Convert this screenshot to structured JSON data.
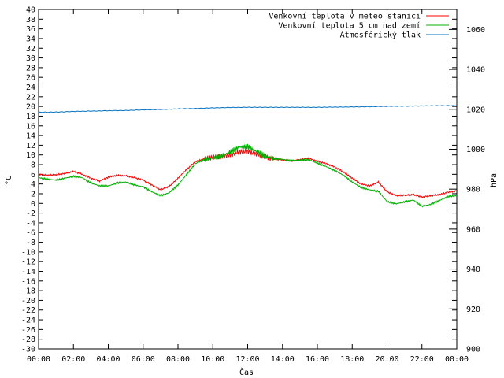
{
  "chart_data": {
    "type": "line",
    "xlabel": "Čas",
    "ylabel_left": "°C",
    "ylabel_right": "hPa",
    "x_ticks": [
      "00:00",
      "02:00",
      "04:00",
      "06:00",
      "08:00",
      "10:00",
      "12:00",
      "14:00",
      "16:00",
      "18:00",
      "20:00",
      "22:00",
      "00:00"
    ],
    "x_range_hours": [
      0,
      24
    ],
    "y_left_range": [
      -30,
      40
    ],
    "y_left_step": 2,
    "y_right_range": [
      900,
      1070
    ],
    "y_right_ticks": [
      900,
      920,
      940,
      960,
      980,
      1000,
      1020,
      1040,
      1060
    ],
    "grid": false,
    "legend_position": "top-right",
    "series": [
      {
        "name": "Venkovní teplota v meteo stanici",
        "color": "#ff0000",
        "axis": "left",
        "x": [
          0,
          0.5,
          1,
          1.5,
          2,
          2.5,
          3,
          3.5,
          4,
          4.5,
          5,
          5.5,
          6,
          6.5,
          7,
          7.5,
          8,
          8.5,
          9,
          9.5,
          10,
          10.5,
          11,
          11.5,
          12,
          12.5,
          13,
          13.5,
          14,
          14.5,
          15,
          15.5,
          16,
          16.5,
          17,
          17.5,
          18,
          18.5,
          19,
          19.5,
          20,
          20.5,
          21,
          21.5,
          22,
          22.5,
          23,
          23.5,
          24
        ],
        "values": [
          6.0,
          5.8,
          5.9,
          6.2,
          6.6,
          6.0,
          5.2,
          4.6,
          5.4,
          5.8,
          5.7,
          5.3,
          4.8,
          3.8,
          2.8,
          3.5,
          5.2,
          7.0,
          8.6,
          9.2,
          9.5,
          9.7,
          10.0,
          10.6,
          10.7,
          10.2,
          9.6,
          9.1,
          9.0,
          8.8,
          9.0,
          9.3,
          8.7,
          8.2,
          7.5,
          6.5,
          5.2,
          4.0,
          3.6,
          4.4,
          2.4,
          1.6,
          1.7,
          1.8,
          1.3,
          1.6,
          1.8,
          2.3,
          2.6
        ]
      },
      {
        "name": "Venkovní teplota 5 cm nad zemí",
        "color": "#00b000",
        "axis": "left",
        "x": [
          0,
          0.5,
          1,
          1.5,
          2,
          2.5,
          3,
          3.5,
          4,
          4.5,
          5,
          5.5,
          6,
          6.5,
          7,
          7.5,
          8,
          8.5,
          9,
          9.5,
          10,
          10.5,
          11,
          11.5,
          12,
          12.5,
          13,
          13.5,
          14,
          14.5,
          15,
          15.5,
          16,
          16.5,
          17,
          17.5,
          18,
          18.5,
          19,
          19.5,
          20,
          20.5,
          21,
          21.5,
          22,
          22.5,
          23,
          23.5,
          24
        ],
        "values": [
          5.3,
          5.0,
          4.8,
          5.2,
          5.6,
          5.3,
          4.2,
          3.6,
          3.6,
          4.2,
          4.4,
          3.8,
          3.4,
          2.4,
          1.6,
          2.2,
          3.8,
          6.0,
          8.2,
          9.0,
          9.4,
          9.8,
          10.6,
          11.6,
          11.7,
          10.7,
          9.8,
          9.3,
          9.1,
          8.8,
          8.9,
          9.0,
          8.3,
          7.6,
          6.8,
          5.8,
          4.4,
          3.3,
          2.8,
          2.5,
          0.4,
          -0.1,
          0.3,
          0.7,
          -0.6,
          -0.2,
          0.6,
          1.4,
          1.6
        ]
      },
      {
        "name": "Atmosférický tlak",
        "color": "#0070c0",
        "axis": "right",
        "x": [
          0,
          1,
          2,
          3,
          4,
          5,
          6,
          7,
          8,
          9,
          10,
          11,
          12,
          13,
          14,
          15,
          16,
          17,
          18,
          19,
          20,
          21,
          22,
          23,
          24
        ],
        "values": [
          1018.5,
          1018.6,
          1018.9,
          1019.1,
          1019.3,
          1019.4,
          1019.7,
          1019.9,
          1020.2,
          1020.4,
          1020.7,
          1020.9,
          1021.0,
          1021.0,
          1021.0,
          1021.0,
          1021.0,
          1021.1,
          1021.2,
          1021.3,
          1021.5,
          1021.6,
          1021.7,
          1021.8,
          1021.8
        ]
      }
    ]
  }
}
